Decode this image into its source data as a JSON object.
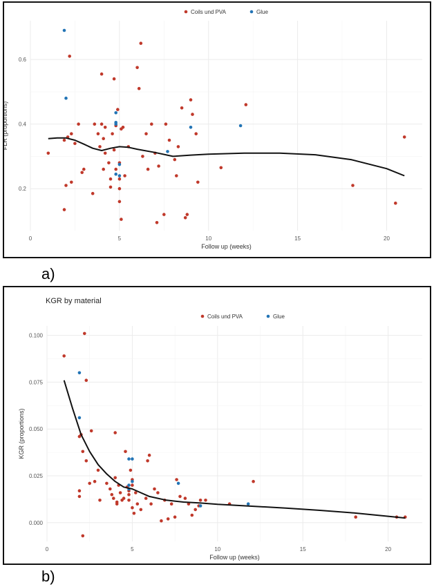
{
  "colors": {
    "coils_pva": "#c0392b",
    "glue": "#2274b5",
    "smooth": "#111111",
    "grid": "#ebebeb",
    "axis_text": "#555555"
  },
  "panel_labels": {
    "a": "a)",
    "b": "b)"
  },
  "chart_data": [
    {
      "type": "scatter",
      "title": "",
      "xlabel": "Follow up (weeks)",
      "ylabel": "FLR (proportions)",
      "xlim": [
        0,
        22
      ],
      "ylim": [
        0.07,
        0.72
      ],
      "xticks": [
        0,
        5,
        10,
        15,
        20
      ],
      "yticks": [
        0.2,
        0.4,
        0.6
      ],
      "ytick_labels": [
        "0.2",
        "0.4",
        "0.6"
      ],
      "grid": true,
      "legend_position": "top",
      "series": [
        {
          "name": "Coils und PVA",
          "color_key": "coils_pva",
          "points": [
            [
              1,
              0.31
            ],
            [
              1.9,
              0.135
            ],
            [
              1.9,
              0.35
            ],
            [
              2,
              0.21
            ],
            [
              2.1,
              0.36
            ],
            [
              2.2,
              0.61
            ],
            [
              2.3,
              0.22
            ],
            [
              2.3,
              0.37
            ],
            [
              2.5,
              0.34
            ],
            [
              2.7,
              0.4
            ],
            [
              2.9,
              0.25
            ],
            [
              3,
              0.26
            ],
            [
              3.5,
              0.185
            ],
            [
              3.6,
              0.4
            ],
            [
              3.8,
              0.37
            ],
            [
              3.9,
              0.33
            ],
            [
              4,
              0.555
            ],
            [
              4,
              0.4
            ],
            [
              4.1,
              0.355
            ],
            [
              4.1,
              0.26
            ],
            [
              4.2,
              0.39
            ],
            [
              4.2,
              0.31
            ],
            [
              4.4,
              0.28
            ],
            [
              4.5,
              0.23
            ],
            [
              4.5,
              0.205
            ],
            [
              4.6,
              0.37
            ],
            [
              4.7,
              0.54
            ],
            [
              4.7,
              0.32
            ],
            [
              4.8,
              0.26
            ],
            [
              4.8,
              0.395
            ],
            [
              4.9,
              0.445
            ],
            [
              5,
              0.28
            ],
            [
              5,
              0.23
            ],
            [
              5,
              0.2
            ],
            [
              5,
              0.16
            ],
            [
              5.1,
              0.385
            ],
            [
              5.1,
              0.105
            ],
            [
              5.2,
              0.39
            ],
            [
              5.3,
              0.24
            ],
            [
              5.5,
              0.33
            ],
            [
              6,
              0.575
            ],
            [
              6.1,
              0.51
            ],
            [
              6.2,
              0.65
            ],
            [
              6.3,
              0.3
            ],
            [
              6.5,
              0.37
            ],
            [
              6.6,
              0.26
            ],
            [
              6.8,
              0.4
            ],
            [
              7,
              0.31
            ],
            [
              7.1,
              0.095
            ],
            [
              7.2,
              0.27
            ],
            [
              7.5,
              0.12
            ],
            [
              7.6,
              0.4
            ],
            [
              7.8,
              0.35
            ],
            [
              8.1,
              0.29
            ],
            [
              8.2,
              0.24
            ],
            [
              8.3,
              0.33
            ],
            [
              8.5,
              0.45
            ],
            [
              8.7,
              0.11
            ],
            [
              8.8,
              0.12
            ],
            [
              9,
              0.475
            ],
            [
              9.1,
              0.43
            ],
            [
              9.3,
              0.37
            ],
            [
              9.4,
              0.22
            ],
            [
              10.7,
              0.265
            ],
            [
              12.1,
              0.46
            ],
            [
              18.1,
              0.21
            ],
            [
              20.5,
              0.155
            ],
            [
              21,
              0.36
            ]
          ]
        },
        {
          "name": "Glue",
          "color_key": "glue",
          "points": [
            [
              1.9,
              0.69
            ],
            [
              2,
              0.48
            ],
            [
              4.8,
              0.435
            ],
            [
              4.8,
              0.4
            ],
            [
              4.8,
              0.405
            ],
            [
              4.8,
              0.245
            ],
            [
              5,
              0.275
            ],
            [
              5,
              0.24
            ],
            [
              7.7,
              0.315
            ],
            [
              9,
              0.39
            ],
            [
              11.8,
              0.395
            ]
          ]
        }
      ],
      "smooth_line": {
        "x": [
          1,
          1.5,
          2,
          2.5,
          3,
          3.5,
          4,
          4.5,
          5,
          5.5,
          6,
          7,
          8,
          9,
          10,
          12,
          14,
          16,
          18,
          20,
          21
        ],
        "y": [
          0.355,
          0.357,
          0.357,
          0.35,
          0.338,
          0.325,
          0.318,
          0.325,
          0.33,
          0.328,
          0.322,
          0.312,
          0.3,
          0.304,
          0.307,
          0.31,
          0.31,
          0.305,
          0.29,
          0.262,
          0.24
        ]
      }
    },
    {
      "type": "scatter",
      "title": "KGR by material",
      "xlabel": "Follow up (weeks)",
      "ylabel": "KGR (proportions)",
      "xlim": [
        0,
        22
      ],
      "ylim": [
        -0.01,
        0.105
      ],
      "xticks": [
        0,
        5,
        10,
        15,
        20
      ],
      "yticks": [
        0,
        0.025,
        0.05,
        0.075,
        0.1
      ],
      "ytick_labels": [
        "0.000",
        "0.025",
        "0.050",
        "0.075",
        "0.100"
      ],
      "grid": true,
      "legend_position": "top",
      "series": [
        {
          "name": "Coils und PVA",
          "color_key": "coils_pva",
          "points": [
            [
              1,
              0.089
            ],
            [
              1.9,
              0.046
            ],
            [
              1.9,
              0.017
            ],
            [
              1.9,
              0.014
            ],
            [
              2,
              0.047
            ],
            [
              2.1,
              -0.007
            ],
            [
              2.1,
              0.038
            ],
            [
              2.2,
              0.101
            ],
            [
              2.3,
              0.076
            ],
            [
              2.3,
              0.033
            ],
            [
              2.5,
              0.021
            ],
            [
              2.6,
              0.049
            ],
            [
              2.8,
              0.022
            ],
            [
              3,
              0.028
            ],
            [
              3.1,
              0.012
            ],
            [
              3.5,
              0.021
            ],
            [
              3.7,
              0.018
            ],
            [
              3.8,
              0.015
            ],
            [
              3.9,
              0.013
            ],
            [
              4,
              0.048
            ],
            [
              4,
              0.024
            ],
            [
              4.1,
              0.011
            ],
            [
              4.1,
              0.01
            ],
            [
              4.2,
              0.02
            ],
            [
              4.3,
              0.016
            ],
            [
              4.4,
              0.012
            ],
            [
              4.5,
              0.013
            ],
            [
              4.6,
              0.038
            ],
            [
              4.7,
              0.019
            ],
            [
              4.8,
              0.017
            ],
            [
              4.8,
              0.015
            ],
            [
              4.8,
              0.012
            ],
            [
              4.9,
              0.028
            ],
            [
              5,
              0.023
            ],
            [
              5,
              0.02
            ],
            [
              5,
              0.008
            ],
            [
              5.1,
              0.005
            ],
            [
              5.2,
              0.016
            ],
            [
              5.3,
              0.01
            ],
            [
              5.5,
              0.007
            ],
            [
              5.8,
              0.013
            ],
            [
              5.9,
              0.033
            ],
            [
              6,
              0.036
            ],
            [
              6.1,
              0.01
            ],
            [
              6.3,
              0.018
            ],
            [
              6.5,
              0.016
            ],
            [
              6.7,
              0.001
            ],
            [
              6.9,
              0.012
            ],
            [
              7.1,
              0.002
            ],
            [
              7.3,
              0.01
            ],
            [
              7.5,
              0.003
            ],
            [
              7.6,
              0.023
            ],
            [
              7.8,
              0.014
            ],
            [
              8.1,
              0.013
            ],
            [
              8.3,
              0.01
            ],
            [
              8.5,
              0.004
            ],
            [
              8.7,
              0.007
            ],
            [
              8.9,
              0.009
            ],
            [
              9,
              0.012
            ],
            [
              9.3,
              0.012
            ],
            [
              10.7,
              0.01
            ],
            [
              12.1,
              0.022
            ],
            [
              18.1,
              0.003
            ],
            [
              20.5,
              0.003
            ],
            [
              21,
              0.003
            ]
          ]
        },
        {
          "name": "Glue",
          "color_key": "glue",
          "points": [
            [
              1.9,
              0.08
            ],
            [
              1.9,
              0.056
            ],
            [
              4.8,
              0.034
            ],
            [
              4.8,
              0.02
            ],
            [
              4.8,
              0.018
            ],
            [
              5,
              0.034
            ],
            [
              5,
              0.022
            ],
            [
              7.7,
              0.021
            ],
            [
              9,
              0.009
            ],
            [
              11.8,
              0.01
            ]
          ]
        }
      ],
      "smooth_line": {
        "x": [
          1,
          1.5,
          2,
          2.5,
          3,
          3.5,
          4,
          4.5,
          5,
          5.5,
          6,
          7,
          8,
          9,
          10,
          12,
          14,
          16,
          18,
          20,
          21
        ],
        "y": [
          0.076,
          0.061,
          0.047,
          0.038,
          0.031,
          0.026,
          0.022,
          0.019,
          0.018,
          0.016,
          0.014,
          0.012,
          0.011,
          0.0105,
          0.0098,
          0.0088,
          0.0078,
          0.0066,
          0.0052,
          0.0034,
          0.0025
        ]
      }
    }
  ]
}
